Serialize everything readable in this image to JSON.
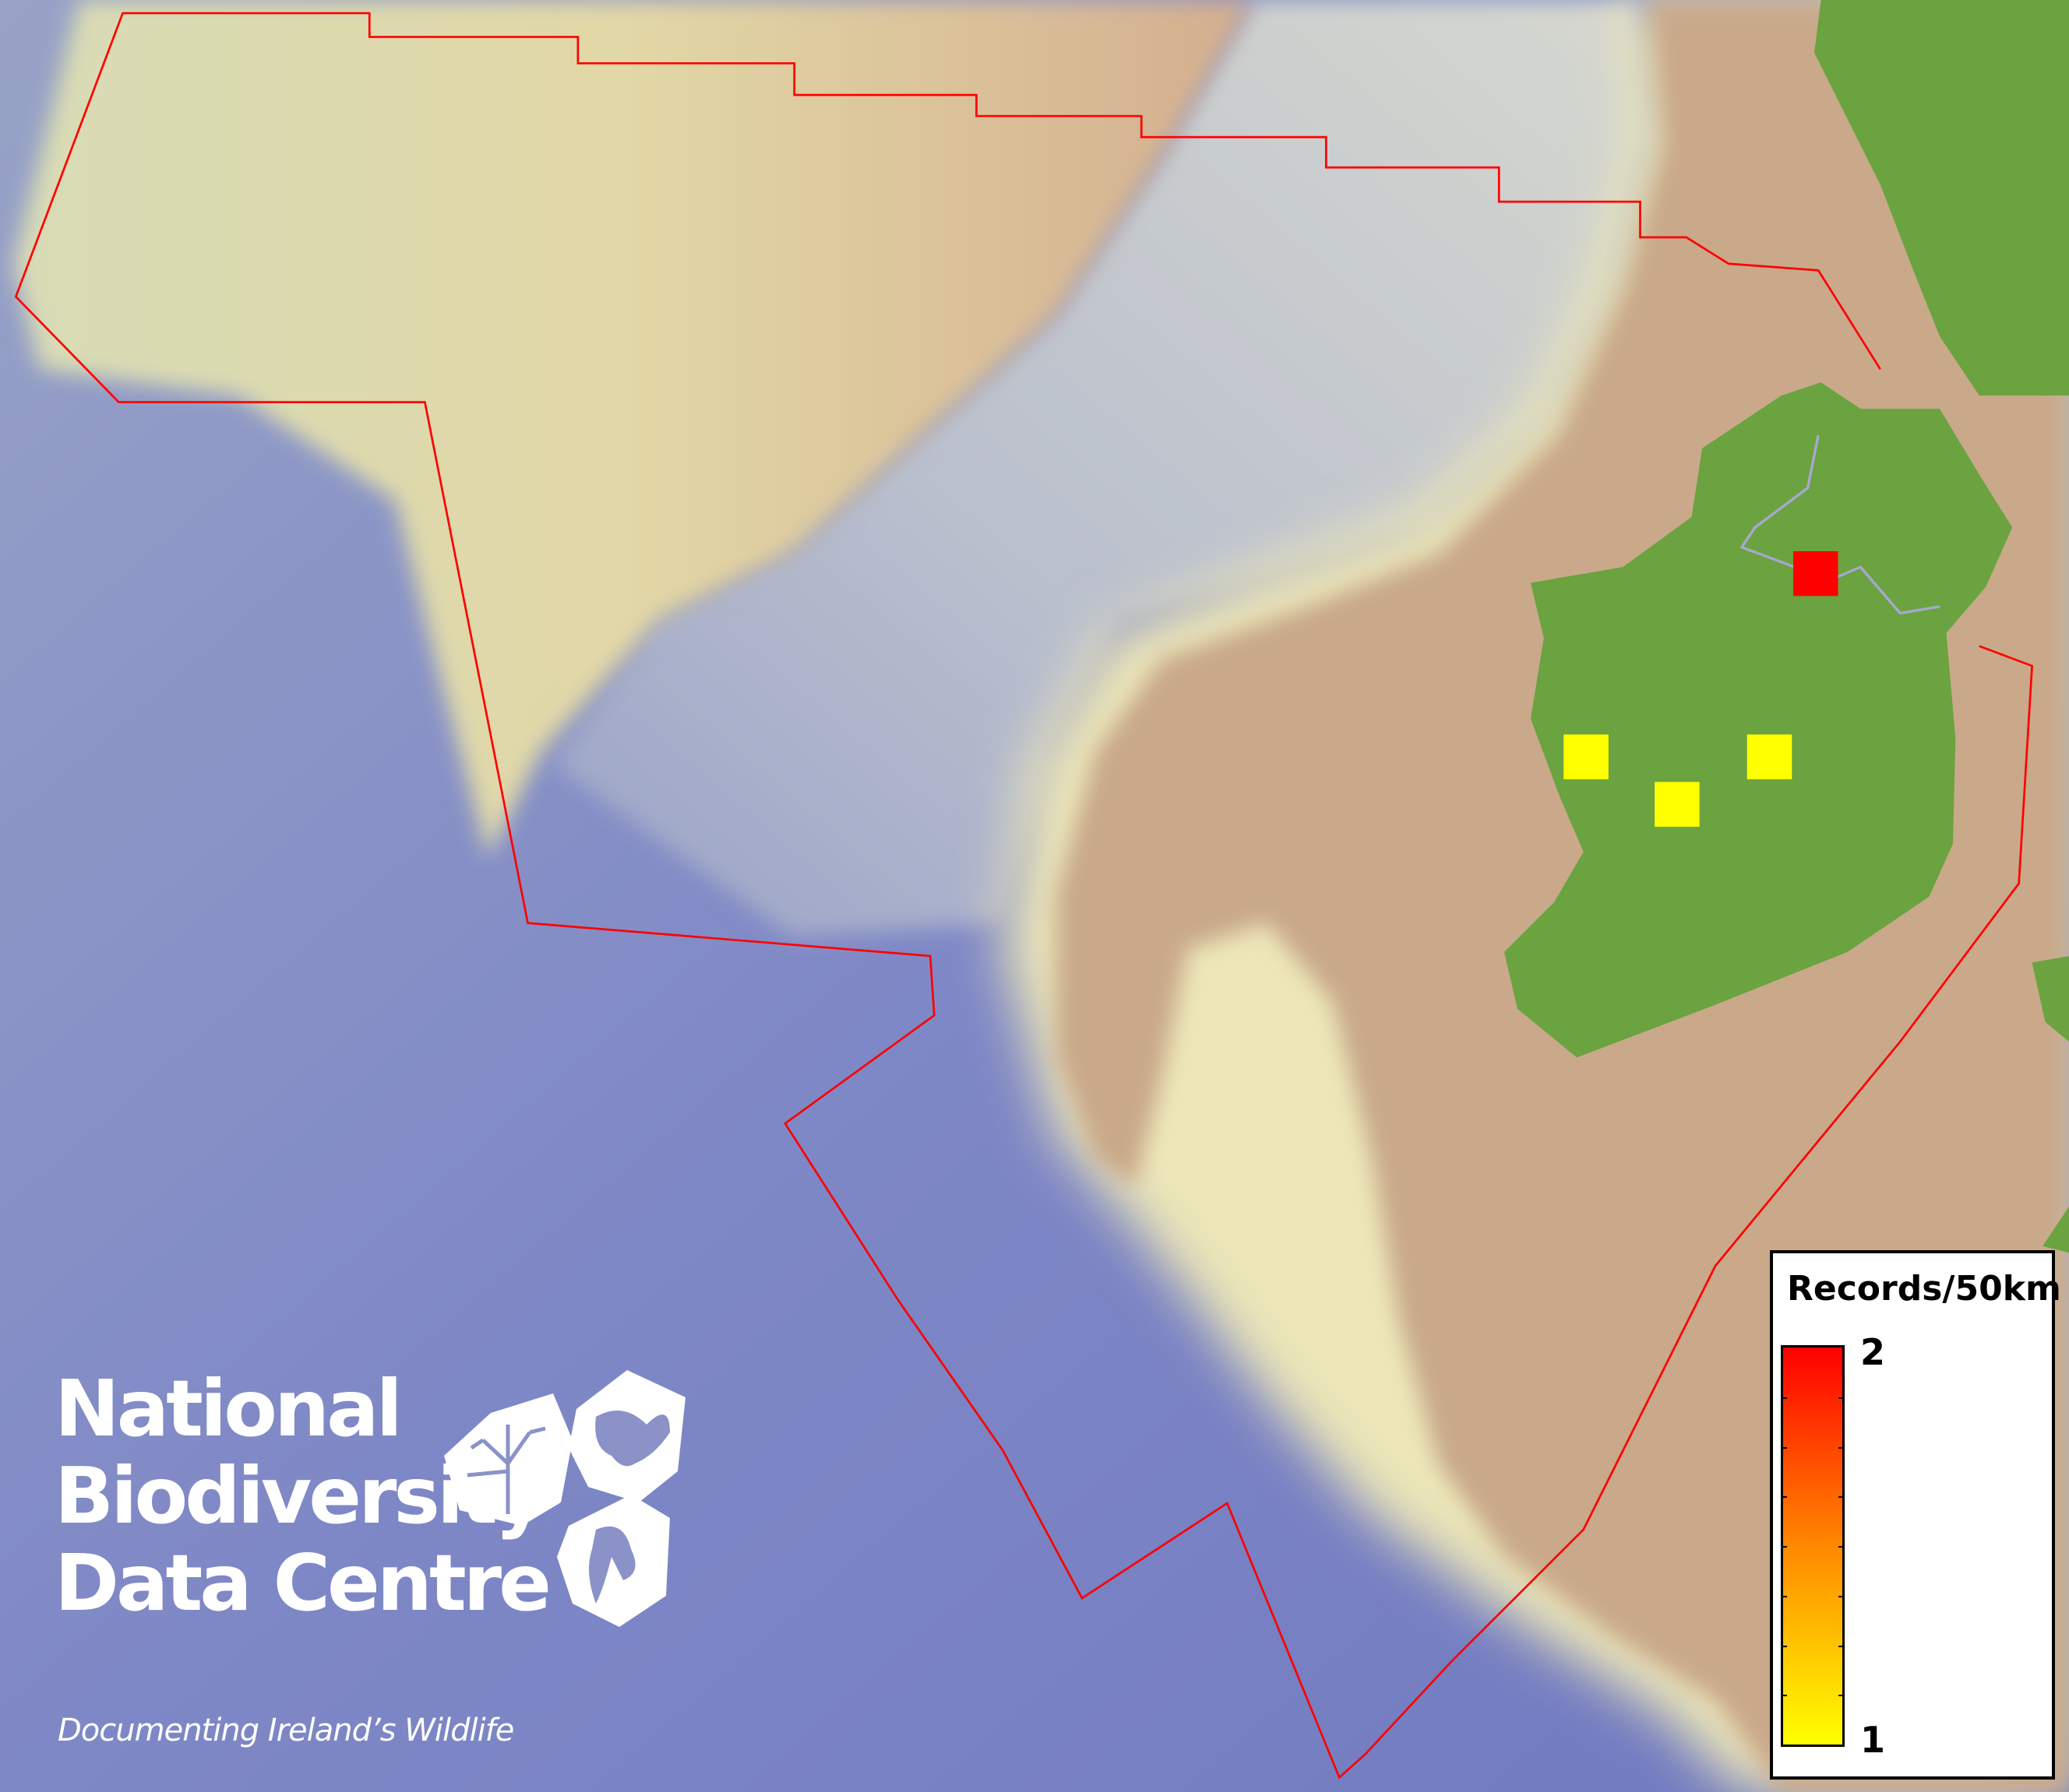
{
  "map": {
    "boundary_color": "#ff0000",
    "land_color": "#6aa33f",
    "shelf_color": "#c9a98a",
    "ocean_color": "#7f88c6",
    "records": [
      {
        "value": 2,
        "color": "#ff0000"
      },
      {
        "value": 1,
        "color": "#ffff00"
      },
      {
        "value": 1,
        "color": "#ffff00"
      },
      {
        "value": 1,
        "color": "#ffff00"
      }
    ]
  },
  "legend": {
    "title": "Records/50km",
    "max_label": "2",
    "min_label": "1",
    "color_high": "#ff0000",
    "color_low": "#ffff00"
  },
  "logo": {
    "line1": "National",
    "line2": "Biodiversity",
    "line3": "Data Centre",
    "tagline": "Documenting Ireland’s Wildlife",
    "icons": [
      "tree-icon",
      "butterfly-icon",
      "seahorse-icon"
    ]
  }
}
